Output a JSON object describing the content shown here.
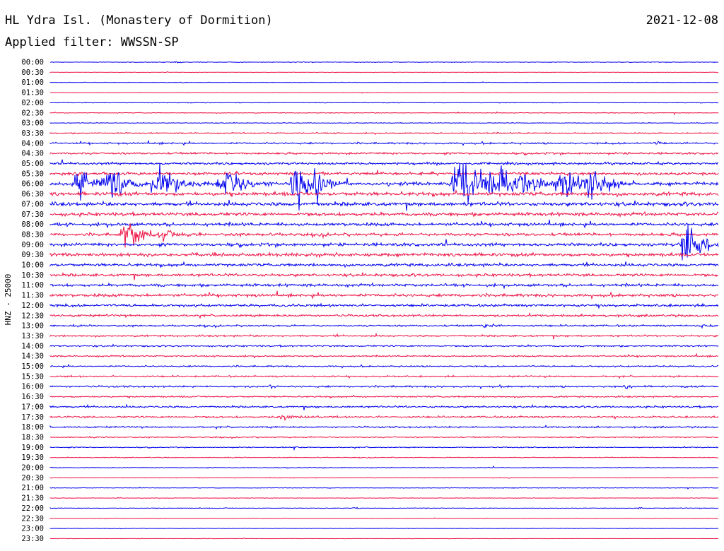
{
  "header": {
    "station": "HL Ydra Isl. (Monastery of Dormition)",
    "date": "2021-12-08",
    "filter": "Applied filter: WWSSN-SP"
  },
  "colors": {
    "odd": "#0000ee",
    "even": "#ee1144"
  },
  "chart_data": {
    "type": "line",
    "channel_label": "HNZ - 25000",
    "time_labels": [
      "00:00",
      "00:30",
      "01:00",
      "01:30",
      "02:00",
      "02:30",
      "03:00",
      "03:30",
      "04:00",
      "04:30",
      "05:00",
      "05:30",
      "06:00",
      "06:30",
      "07:00",
      "07:30",
      "08:00",
      "08:30",
      "09:00",
      "09:30",
      "10:00",
      "10:30",
      "11:00",
      "11:30",
      "12:00",
      "12:30",
      "13:00",
      "13:30",
      "14:00",
      "14:30",
      "15:00",
      "15:30",
      "16:00",
      "16:30",
      "17:00",
      "17:30",
      "18:00",
      "18:30",
      "19:00",
      "19:30",
      "20:00",
      "20:30",
      "21:00",
      "21:30",
      "22:00",
      "22:30",
      "23:00",
      "23:30"
    ],
    "noise_level": [
      0.6,
      0.4,
      0.5,
      0.4,
      0.6,
      0.8,
      0.7,
      1.2,
      1.8,
      2.0,
      2.4,
      3.0,
      3.6,
      3.8,
      3.8,
      3.4,
      3.2,
      3.0,
      3.2,
      3.4,
      3.0,
      2.8,
      2.8,
      3.0,
      2.6,
      2.2,
      1.8,
      1.8,
      1.6,
      1.5,
      1.5,
      1.6,
      1.8,
      1.6,
      1.9,
      1.8,
      1.6,
      1.2,
      1.0,
      0.8,
      0.8,
      0.6,
      0.6,
      0.5,
      0.7,
      0.5,
      0.5,
      0.4
    ],
    "events": [
      {
        "row": 0,
        "pos": 0.19,
        "amp": 5,
        "width": 0.004
      },
      {
        "row": 8,
        "pos": 0.91,
        "amp": 4,
        "width": 0.006
      },
      {
        "row": 12,
        "pos": 0.045,
        "amp": 48,
        "width": 0.012
      },
      {
        "row": 12,
        "pos": 0.095,
        "amp": 55,
        "width": 0.018
      },
      {
        "row": 12,
        "pos": 0.16,
        "amp": 60,
        "width": 0.018
      },
      {
        "row": 12,
        "pos": 0.265,
        "amp": 55,
        "width": 0.018
      },
      {
        "row": 12,
        "pos": 0.37,
        "amp": 140,
        "width": 0.012
      },
      {
        "row": 12,
        "pos": 0.4,
        "amp": 40,
        "width": 0.012
      },
      {
        "row": 12,
        "pos": 0.615,
        "amp": 120,
        "width": 0.02
      },
      {
        "row": 12,
        "pos": 0.68,
        "amp": 55,
        "width": 0.03
      },
      {
        "row": 12,
        "pos": 0.77,
        "amp": 45,
        "width": 0.02
      },
      {
        "row": 12,
        "pos": 0.81,
        "amp": 50,
        "width": 0.014
      },
      {
        "row": 17,
        "pos": 0.115,
        "amp": 50,
        "width": 0.014
      },
      {
        "row": 17,
        "pos": 0.17,
        "amp": 24,
        "width": 0.01
      },
      {
        "row": 18,
        "pos": 0.955,
        "amp": 110,
        "width": 0.012
      },
      {
        "row": 26,
        "pos": 0.65,
        "amp": 7,
        "width": 0.004
      },
      {
        "row": 26,
        "pos": 0.975,
        "amp": 6,
        "width": 0.004
      },
      {
        "row": 32,
        "pos": 0.33,
        "amp": 9,
        "width": 0.004
      },
      {
        "row": 32,
        "pos": 0.86,
        "amp": 8,
        "width": 0.004
      },
      {
        "row": 35,
        "pos": 0.35,
        "amp": 8,
        "width": 0.012
      },
      {
        "row": 38,
        "pos": 0.365,
        "amp": 6,
        "width": 0.004
      },
      {
        "row": 44,
        "pos": 0.455,
        "amp": 4,
        "width": 0.004
      },
      {
        "row": 44,
        "pos": 0.88,
        "amp": 4,
        "width": 0.004
      }
    ],
    "flat_trace_after": 0.75,
    "grid": false
  }
}
